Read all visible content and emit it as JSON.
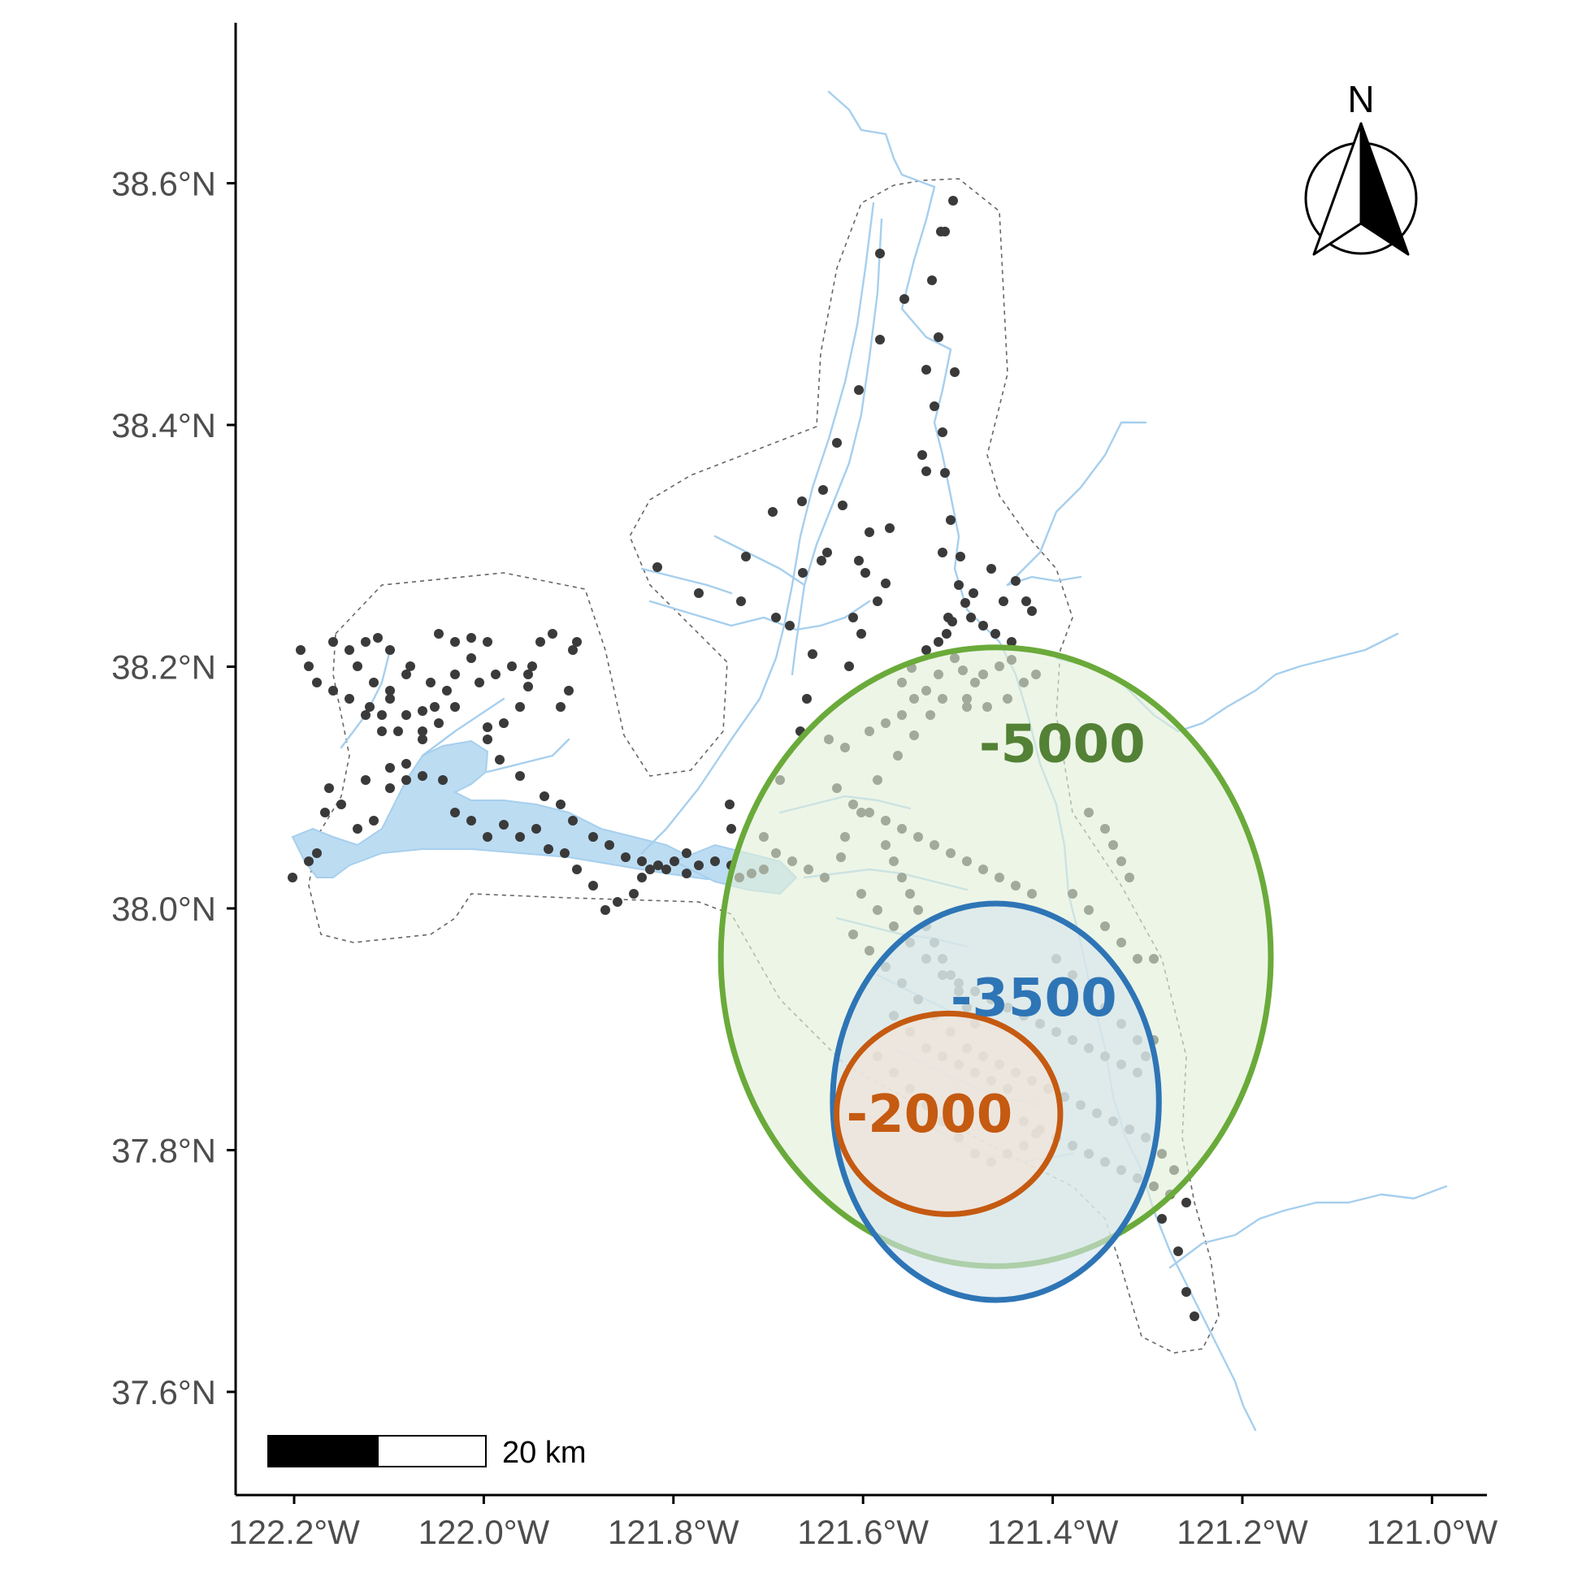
{
  "map": {
    "x_axis": {
      "ticks": [
        {
          "value": -122.2,
          "label": "122.2°W"
        },
        {
          "value": -122.0,
          "label": "122.0°W"
        },
        {
          "value": -121.8,
          "label": "121.8°W"
        },
        {
          "value": -121.6,
          "label": "121.6°W"
        },
        {
          "value": -121.4,
          "label": "121.4°W"
        },
        {
          "value": -121.2,
          "label": "121.2°W"
        },
        {
          "value": -121.0,
          "label": "121.0°W"
        }
      ]
    },
    "y_axis": {
      "ticks": [
        {
          "value": 38.6,
          "label": "38.6°N"
        },
        {
          "value": 38.4,
          "label": "38.4°N"
        },
        {
          "value": 38.2,
          "label": "38.2°N"
        },
        {
          "value": 38.0,
          "label": "38.0°N"
        },
        {
          "value": 37.8,
          "label": "37.8°N"
        },
        {
          "value": 37.6,
          "label": "37.6°N"
        }
      ]
    },
    "north_arrow": {
      "letter": "N"
    },
    "scale_bar": {
      "label": "20 km"
    },
    "zones": [
      {
        "label": "-5000",
        "color": "#6aaa3a",
        "text_color": "#538135",
        "fill": "#e2efd9",
        "center_lon": -121.46,
        "center_lat": 37.96,
        "radius_lon": 0.29,
        "radius_lat": 0.256
      },
      {
        "label": "-3500",
        "color": "#2e75b6",
        "text_color": "#2e75b6",
        "fill": "#d6e5ee",
        "center_lon": -121.46,
        "center_lat": 37.84,
        "radius_lon": 0.172,
        "radius_lat": 0.164
      },
      {
        "label": "-2000",
        "color": "#c55a11",
        "text_color": "#c55a11",
        "fill": "#f6e3d6",
        "center_lon": -121.51,
        "center_lat": 37.83,
        "radius_lon": 0.118,
        "radius_lat": 0.083
      }
    ],
    "colors": {
      "water": "#a6cfee",
      "water_fill": "#bcdcf2",
      "points": "#3a3a3a",
      "boundary": "#555555",
      "axis": "#000000"
    }
  }
}
